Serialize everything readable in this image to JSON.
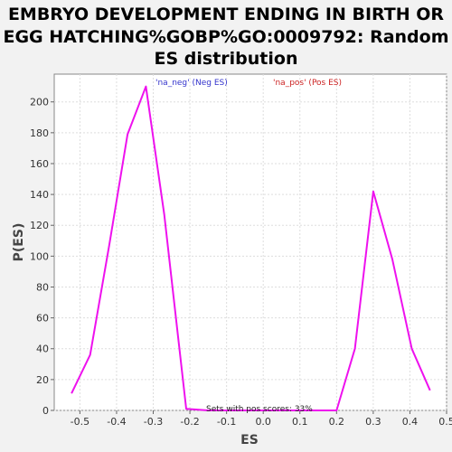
{
  "chart_data": {
    "type": "line",
    "title_lines": [
      "EMBRYO DEVELOPMENT ENDING IN BIRTH OR",
      "EGG HATCHING%GOBP%GO:0009792: Random",
      "ES distribution"
    ],
    "xlabel": "ES",
    "ylabel": "P(ES)",
    "xlim": [
      -0.57,
      0.5
    ],
    "ylim": [
      0,
      218
    ],
    "x_ticks": [
      -0.5,
      -0.4,
      -0.3,
      -0.2,
      -0.1,
      0.0,
      0.1,
      0.2,
      0.3,
      0.4,
      0.5
    ],
    "x_tick_labels": [
      "-0.5",
      "-0.4",
      "-0.3",
      "-0.2",
      "-0.1",
      "0.0",
      "0.1",
      "0.2",
      "0.3",
      "0.4",
      "0.5"
    ],
    "y_ticks": [
      0,
      20,
      40,
      60,
      80,
      100,
      120,
      140,
      160,
      180,
      200
    ],
    "y_tick_labels": [
      "0",
      "20",
      "40",
      "60",
      "80",
      "100",
      "120",
      "140",
      "160",
      "180",
      "200"
    ],
    "grid": true,
    "legend": [
      {
        "label": "'na_neg' (Neg ES)",
        "color": "#3333cc"
      },
      {
        "label": "'na_pos' (Pos ES)",
        "color": "#cc2222"
      }
    ],
    "annotation": "Sets with pos scores: 33%",
    "series": [
      {
        "color": "#ee11ee",
        "points": [
          [
            -0.523,
            11
          ],
          [
            -0.472,
            36
          ],
          [
            -0.42,
            107
          ],
          [
            -0.37,
            179
          ],
          [
            -0.32,
            210
          ],
          [
            -0.27,
            127
          ],
          [
            -0.21,
            1
          ],
          [
            -0.15,
            0
          ],
          [
            0.0,
            0
          ],
          [
            0.2,
            0
          ],
          [
            0.25,
            40
          ],
          [
            0.3,
            142
          ],
          [
            0.352,
            98
          ],
          [
            0.405,
            40
          ],
          [
            0.455,
            13
          ]
        ]
      }
    ]
  }
}
